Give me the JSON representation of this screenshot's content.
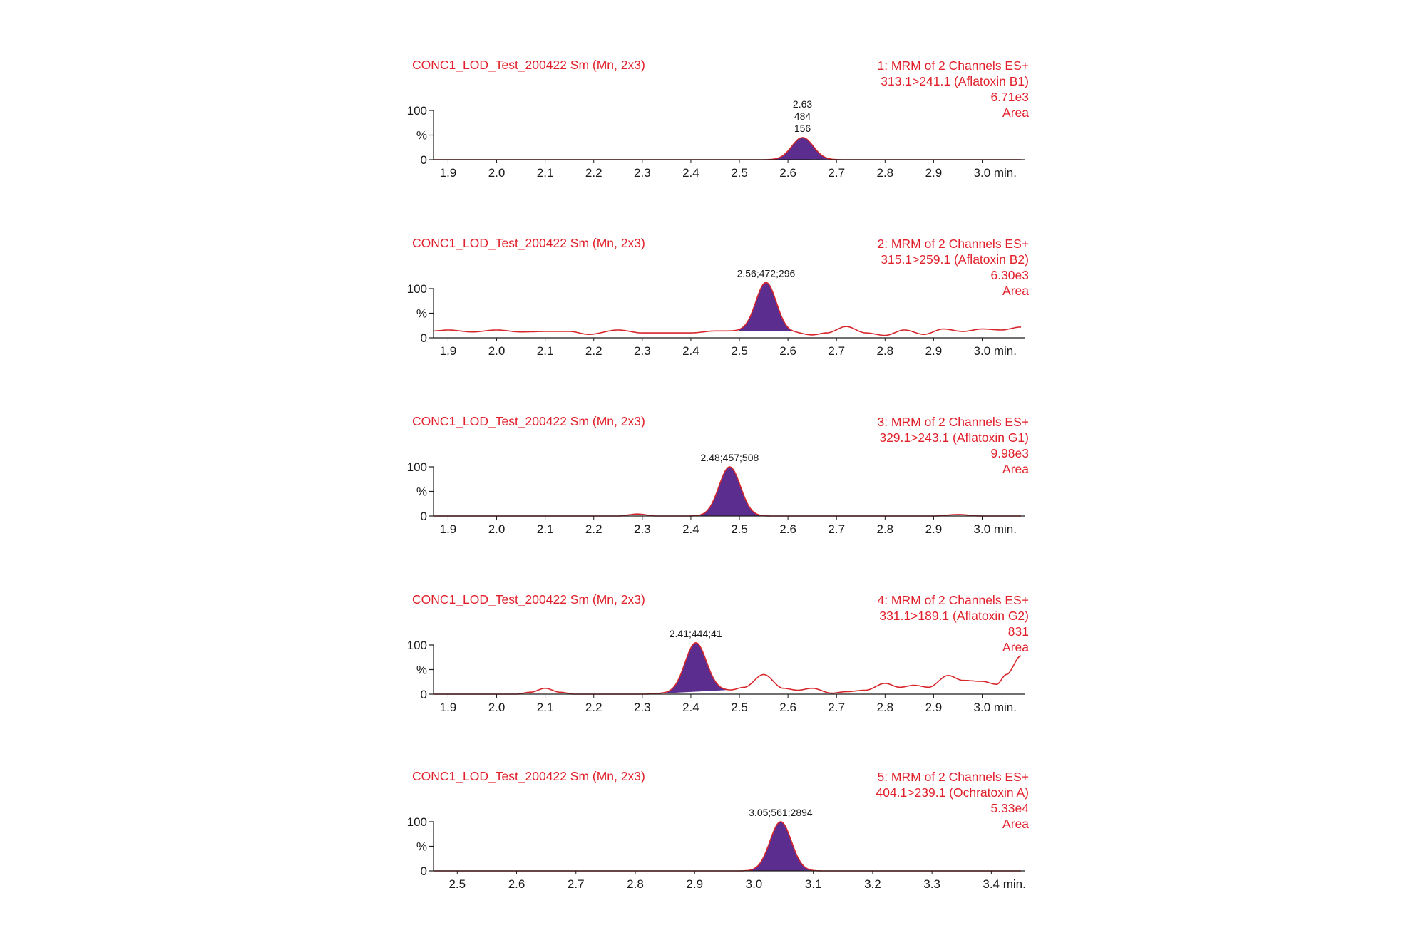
{
  "chart_data": [
    {
      "type": "area",
      "sample": "CONC1_LOD_Test_200422 Sm (Mn, 2x3)",
      "function": "1: MRM of 2 Channels ES+",
      "transition": "313.1>241.1 (Aflatoxin B1)",
      "intensity": "6.71e3",
      "mode": "Area",
      "peak_label": [
        "2.63",
        "484",
        "156"
      ],
      "y_ticks": [
        "100",
        "%",
        "0"
      ],
      "x_ticks": [
        "1.9",
        "2.0",
        "2.1",
        "2.2",
        "2.3",
        "2.4",
        "2.5",
        "2.6",
        "2.7",
        "2.8",
        "2.9",
        "3.0 min."
      ],
      "x_tick_values": [
        1.9,
        2.0,
        2.1,
        2.2,
        2.3,
        2.4,
        2.5,
        2.6,
        2.7,
        2.8,
        2.9,
        3.0
      ],
      "xlim": [
        1.87,
        3.08
      ],
      "ylim": [
        0,
        100
      ],
      "peak": {
        "rt": 2.63,
        "height": 45,
        "width": 0.022,
        "start": 2.575,
        "end": 2.69
      },
      "trace": [
        [
          1.87,
          0
        ],
        [
          2.55,
          0
        ],
        [
          3.08,
          0
        ]
      ]
    },
    {
      "type": "area",
      "sample": "CONC1_LOD_Test_200422 Sm (Mn, 2x3)",
      "function": "2: MRM of 2 Channels ES+",
      "transition": "315.1>259.1 (Aflatoxin B2)",
      "intensity": "6.30e3",
      "mode": "Area",
      "peak_label": [
        "2.56;472;296"
      ],
      "y_ticks": [
        "100",
        "%",
        "0"
      ],
      "x_ticks": [
        "1.9",
        "2.0",
        "2.1",
        "2.2",
        "2.3",
        "2.4",
        "2.5",
        "2.6",
        "2.7",
        "2.8",
        "2.9",
        "3.0 min."
      ],
      "x_tick_values": [
        1.9,
        2.0,
        2.1,
        2.2,
        2.3,
        2.4,
        2.5,
        2.6,
        2.7,
        2.8,
        2.9,
        3.0
      ],
      "xlim": [
        1.87,
        3.08
      ],
      "ylim": [
        0,
        100
      ],
      "peak": {
        "rt": 2.555,
        "height": 100,
        "width": 0.021,
        "start": 2.5,
        "end": 2.61
      },
      "trace": [
        [
          1.87,
          14
        ],
        [
          1.9,
          16
        ],
        [
          1.95,
          12
        ],
        [
          2.0,
          16
        ],
        [
          2.05,
          12
        ],
        [
          2.1,
          13
        ],
        [
          2.15,
          13
        ],
        [
          2.19,
          7
        ],
        [
          2.25,
          16
        ],
        [
          2.3,
          10
        ],
        [
          2.35,
          10
        ],
        [
          2.4,
          10
        ],
        [
          2.45,
          14
        ],
        [
          2.5,
          14
        ],
        [
          2.61,
          11
        ],
        [
          2.65,
          6
        ],
        [
          2.68,
          10
        ],
        [
          2.72,
          23
        ],
        [
          2.76,
          10
        ],
        [
          2.8,
          5
        ],
        [
          2.84,
          16
        ],
        [
          2.88,
          7
        ],
        [
          2.92,
          18
        ],
        [
          2.96,
          13
        ],
        [
          3.0,
          18
        ],
        [
          3.04,
          16
        ],
        [
          3.08,
          22
        ]
      ]
    },
    {
      "type": "area",
      "sample": "CONC1_LOD_Test_200422 Sm (Mn, 2x3)",
      "function": "3: MRM of 2 Channels ES+",
      "transition": "329.1>243.1 (Aflatoxin G1)",
      "intensity": "9.98e3",
      "mode": "Area",
      "peak_label": [
        "2.48;457;508"
      ],
      "y_ticks": [
        "100",
        "%",
        "0"
      ],
      "x_ticks": [
        "1.9",
        "2.0",
        "2.1",
        "2.2",
        "2.3",
        "2.4",
        "2.5",
        "2.6",
        "2.7",
        "2.8",
        "2.9",
        "3.0 min."
      ],
      "x_tick_values": [
        1.9,
        2.0,
        2.1,
        2.2,
        2.3,
        2.4,
        2.5,
        2.6,
        2.7,
        2.8,
        2.9,
        3.0
      ],
      "xlim": [
        1.87,
        3.08
      ],
      "ylim": [
        0,
        100
      ],
      "peak": {
        "rt": 2.48,
        "height": 100,
        "width": 0.022,
        "start": 2.42,
        "end": 2.55
      },
      "trace": [
        [
          1.87,
          0
        ],
        [
          2.25,
          0
        ],
        [
          2.29,
          4
        ],
        [
          2.33,
          0
        ],
        [
          2.4,
          0
        ],
        [
          2.57,
          0
        ],
        [
          2.9,
          0
        ],
        [
          2.95,
          3
        ],
        [
          3.0,
          0
        ],
        [
          3.08,
          0
        ]
      ]
    },
    {
      "type": "area",
      "sample": "CONC1_LOD_Test_200422 Sm (Mn, 2x3)",
      "function": "4: MRM of 2 Channels ES+",
      "transition": "331.1>189.1 (Aflatoxin G2)",
      "intensity": "831",
      "mode": "Area",
      "peak_label": [
        "2.41;444;41"
      ],
      "y_ticks": [
        "100",
        "%",
        "0"
      ],
      "x_ticks": [
        "1.9",
        "2.0",
        "2.1",
        "2.2",
        "2.3",
        "2.4",
        "2.5",
        "2.6",
        "2.7",
        "2.8",
        "2.9",
        "3.0 min."
      ],
      "x_tick_values": [
        1.9,
        2.0,
        2.1,
        2.2,
        2.3,
        2.4,
        2.5,
        2.6,
        2.7,
        2.8,
        2.9,
        3.0
      ],
      "xlim": [
        1.87,
        3.08
      ],
      "ylim": [
        0,
        100
      ],
      "peak": {
        "rt": 2.41,
        "height": 100,
        "width": 0.022,
        "start": 2.35,
        "end": 2.48
      },
      "trace": [
        [
          1.87,
          0
        ],
        [
          2.04,
          0
        ],
        [
          2.07,
          4
        ],
        [
          2.1,
          12
        ],
        [
          2.13,
          4
        ],
        [
          2.16,
          0
        ],
        [
          2.3,
          0
        ],
        [
          2.35,
          2
        ],
        [
          2.48,
          8
        ],
        [
          2.51,
          14
        ],
        [
          2.55,
          40
        ],
        [
          2.59,
          12
        ],
        [
          2.62,
          8
        ],
        [
          2.65,
          12
        ],
        [
          2.69,
          2
        ],
        [
          2.72,
          5
        ],
        [
          2.76,
          8
        ],
        [
          2.8,
          22
        ],
        [
          2.83,
          14
        ],
        [
          2.86,
          18
        ],
        [
          2.89,
          14
        ],
        [
          2.93,
          38
        ],
        [
          2.96,
          28
        ],
        [
          3.0,
          26
        ],
        [
          3.03,
          20
        ],
        [
          3.05,
          40
        ],
        [
          3.08,
          78
        ]
      ]
    },
    {
      "type": "area",
      "sample": "CONC1_LOD_Test_200422 Sm (Mn, 2x3)",
      "function": "5: MRM of 2 Channels ES+",
      "transition": "404.1>239.1 (Ochratoxin A)",
      "intensity": "5.33e4",
      "mode": "Area",
      "peak_label": [
        "3.05;561;2894"
      ],
      "y_ticks": [
        "100",
        "%",
        "0"
      ],
      "x_ticks": [
        "2.5",
        "2.6",
        "2.7",
        "2.8",
        "2.9",
        "3.0",
        "3.1",
        "3.2",
        "3.3",
        "3.4 min."
      ],
      "x_tick_values": [
        2.5,
        2.6,
        2.7,
        2.8,
        2.9,
        3.0,
        3.1,
        3.2,
        3.3,
        3.4
      ],
      "xlim": [
        2.46,
        3.45
      ],
      "ylim": [
        0,
        100
      ],
      "peak": {
        "rt": 3.045,
        "height": 100,
        "width": 0.018,
        "start": 2.99,
        "end": 3.1
      },
      "trace": [
        [
          2.46,
          0
        ],
        [
          3.45,
          0
        ]
      ]
    }
  ],
  "colors": {
    "trace": "#d7262b",
    "fill": "#5a2d8e",
    "header_text": "#e0202a",
    "axis": "#1a1a1a"
  }
}
